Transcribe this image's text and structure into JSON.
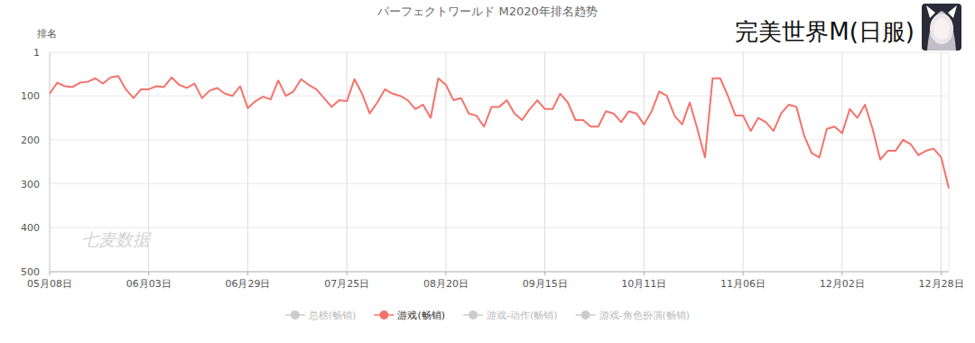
{
  "chart_data": {
    "type": "line",
    "title": "パーフェクトワールド  M2020年排名趋势",
    "subtitle": "完美世界M(日服)",
    "y_label": "排名",
    "annotations": [
      "七麦数据"
    ],
    "categories": [
      "05月08日",
      null,
      null,
      null,
      null,
      null,
      null,
      null,
      null,
      null,
      null,
      null,
      null,
      "06月03日",
      null,
      null,
      null,
      null,
      null,
      null,
      null,
      null,
      null,
      null,
      null,
      null,
      "06月29日",
      null,
      null,
      null,
      null,
      null,
      null,
      null,
      null,
      null,
      null,
      null,
      null,
      "07月25日",
      null,
      null,
      null,
      null,
      null,
      null,
      null,
      null,
      null,
      null,
      null,
      null,
      "08月20日",
      null,
      null,
      null,
      null,
      null,
      null,
      null,
      null,
      null,
      null,
      null,
      null,
      "09月15日",
      null,
      null,
      null,
      null,
      null,
      null,
      null,
      null,
      null,
      null,
      null,
      null,
      "10月11日",
      null,
      null,
      null,
      null,
      null,
      null,
      null,
      null,
      null,
      null,
      null,
      null,
      "11月06日",
      null,
      null,
      null,
      null,
      null,
      null,
      null,
      null,
      null,
      null,
      null,
      null,
      "12月02日",
      null,
      null,
      null,
      null,
      null,
      null,
      null,
      null,
      null,
      null,
      null,
      null,
      "12月28日",
      null
    ],
    "series": [
      {
        "name": "总榜(畅销)",
        "color": "#cccccc",
        "values": [
          null,
          null,
          null,
          null,
          null,
          null,
          null,
          null,
          null,
          null,
          null,
          null,
          null,
          null,
          null,
          null,
          null,
          null,
          null,
          null,
          null,
          null,
          null,
          null,
          null,
          null,
          null,
          null,
          null,
          null,
          null,
          null,
          null,
          null,
          null,
          null,
          null,
          null,
          null,
          null,
          null,
          null,
          null,
          null,
          null,
          null,
          null,
          null,
          null,
          null,
          null,
          null,
          null,
          null,
          null,
          null,
          null,
          null,
          null,
          null,
          null,
          null,
          null,
          null,
          null,
          null,
          null,
          null,
          null,
          null,
          null,
          null,
          null,
          null,
          null,
          null,
          null,
          null,
          null,
          null,
          null,
          null,
          null,
          null,
          null,
          null,
          null,
          null,
          null,
          null,
          null,
          null,
          null,
          null,
          null,
          null,
          null,
          null,
          null,
          null,
          null,
          null,
          null,
          null,
          null,
          null,
          null,
          null,
          null,
          null,
          null,
          null,
          null,
          null,
          null,
          null,
          null,
          null,
          null
        ]
      },
      {
        "name": "游戏(畅销)",
        "color": "#f4736b",
        "values": [
          95,
          70,
          78,
          80,
          70,
          68,
          60,
          72,
          58,
          55,
          85,
          105,
          85,
          85,
          78,
          80,
          58,
          75,
          82,
          72,
          105,
          88,
          82,
          95,
          100,
          78,
          128,
          112,
          102,
          108,
          65,
          100,
          90,
          62,
          75,
          85,
          105,
          125,
          110,
          112,
          62,
          95,
          140,
          115,
          85,
          95,
          100,
          110,
          130,
          120,
          150,
          60,
          75,
          110,
          105,
          140,
          145,
          170,
          125,
          125,
          110,
          140,
          155,
          130,
          110,
          130,
          130,
          95,
          115,
          155,
          155,
          170,
          170,
          135,
          140,
          160,
          135,
          140,
          165,
          135,
          90,
          100,
          145,
          165,
          115,
          175,
          240,
          60,
          60,
          100,
          145,
          145,
          180,
          150,
          160,
          180,
          140,
          120,
          125,
          190,
          230,
          240,
          175,
          170,
          185,
          130,
          150,
          120,
          175,
          245,
          225,
          225,
          200,
          210,
          235,
          225,
          220,
          240,
          310
        ]
      },
      {
        "name": "游戏-动作(畅销)",
        "color": "#cccccc",
        "values": [
          null,
          null,
          null,
          null,
          null,
          null,
          null,
          null,
          null,
          null,
          null,
          null,
          null,
          null,
          null,
          null,
          null,
          null,
          null,
          null,
          null,
          null,
          null,
          null,
          null,
          null,
          null,
          null,
          null,
          null,
          null,
          null,
          null,
          null,
          null,
          null,
          null,
          null,
          null,
          null,
          null,
          null,
          null,
          null,
          null,
          null,
          null,
          null,
          null,
          null,
          null,
          null,
          null,
          null,
          null,
          null,
          null,
          null,
          null,
          null,
          null,
          null,
          null,
          null,
          null,
          null,
          null,
          null,
          null,
          null,
          null,
          null,
          null,
          null,
          null,
          null,
          null,
          null,
          null,
          null,
          null,
          null,
          null,
          null,
          null,
          null,
          null,
          null,
          null,
          null,
          null,
          null,
          null,
          null,
          null,
          null,
          null,
          null,
          null,
          null,
          null,
          null,
          null,
          null,
          null,
          null,
          null,
          null,
          null,
          null,
          null,
          null,
          null,
          null,
          null,
          null,
          null,
          null,
          null
        ]
      },
      {
        "name": "游戏-角色扮演(畅销)",
        "color": "#cccccc",
        "values": [
          null,
          null,
          null,
          null,
          null,
          null,
          null,
          null,
          null,
          null,
          null,
          null,
          null,
          null,
          null,
          null,
          null,
          null,
          null,
          null,
          null,
          null,
          null,
          null,
          null,
          null,
          null,
          null,
          null,
          null,
          null,
          null,
          null,
          null,
          null,
          null,
          null,
          null,
          null,
          null,
          null,
          null,
          null,
          null,
          null,
          null,
          null,
          null,
          null,
          null,
          null,
          null,
          null,
          null,
          null,
          null,
          null,
          null,
          null,
          null,
          null,
          null,
          null,
          null,
          null,
          null,
          null,
          null,
          null,
          null,
          null,
          null,
          null,
          null,
          null,
          null,
          null,
          null,
          null,
          null,
          null,
          null,
          null,
          null,
          null,
          null,
          null,
          null,
          null,
          null,
          null,
          null,
          null,
          null,
          null,
          null,
          null,
          null,
          null,
          null,
          null,
          null,
          null,
          null,
          null,
          null,
          null,
          null,
          null,
          null,
          null,
          null,
          null,
          null,
          null,
          null,
          null,
          null,
          null
        ]
      }
    ],
    "ylim": [
      500,
      1
    ],
    "yticks": [
      1,
      100,
      200,
      300,
      400,
      500
    ],
    "grid": true,
    "legend": "bottom"
  }
}
